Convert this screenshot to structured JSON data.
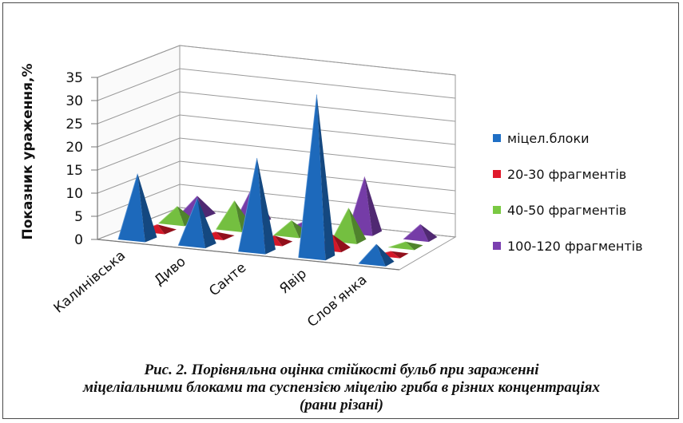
{
  "chart_data": {
    "type": "bar",
    "style": "3d-pyramid",
    "categories": [
      "Калинівська",
      "Диво",
      "Санте",
      "Явір",
      "Слов’янка"
    ],
    "series": [
      {
        "name": "міцел.блоки",
        "color": "#1f6fc5",
        "values": [
          14,
          10,
          20,
          35,
          4
        ]
      },
      {
        "name": "20-30 фрагментів",
        "color": "#e0192b",
        "values": [
          1.3,
          1,
          1.5,
          3,
          0.7
        ]
      },
      {
        "name": "40-50 фрагментів",
        "color": "#7ac943",
        "values": [
          3.5,
          6,
          3,
          7,
          1
        ]
      },
      {
        "name": "100-120 фрагментів",
        "color": "#7b3fb0",
        "values": [
          4,
          7.5,
          1.5,
          12,
          3
        ]
      }
    ],
    "ylabel": "Показник ураження,%",
    "ylim": [
      0,
      35
    ],
    "yticks": [
      "0",
      "5",
      "10",
      "15",
      "20",
      "25",
      "30",
      "35"
    ],
    "grid": true,
    "legend_position": "right"
  },
  "caption": {
    "line1": "Рис. 2. Порівняльна оцінка стійкості бульб при зараженні",
    "line2": "міцеліальними блоками та суспензією міцелію гриба в різних концентраціях",
    "line3": "(рани різані)"
  }
}
